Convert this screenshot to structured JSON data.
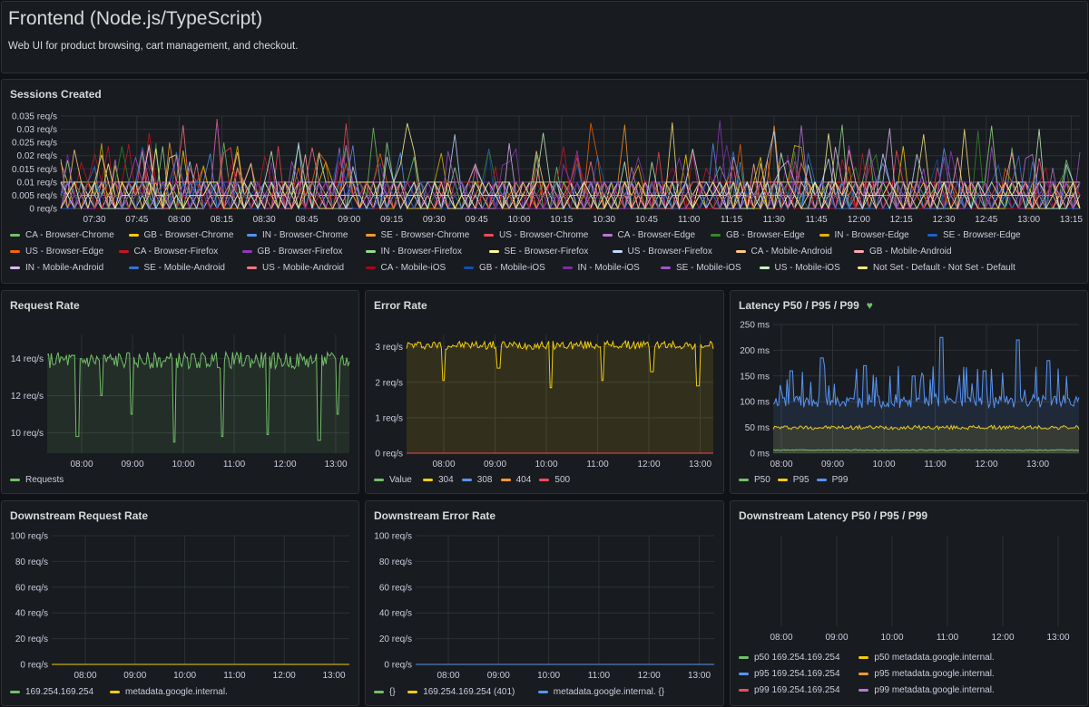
{
  "header": {
    "title": "Frontend (Node.js/TypeScript)",
    "description": "Web UI for product browsing, cart management, and checkout."
  },
  "colors": {
    "green": "#73bf69",
    "yellow": "#f2cc0c",
    "blue": "#5794f2",
    "orange": "#ff9830",
    "red": "#f2495c",
    "purple": "#b877d9",
    "grid": "#2c3235",
    "bg": "#181b1f"
  },
  "sessions": {
    "title": "Sessions Created",
    "chart_data": {
      "type": "line",
      "y_ticks": [
        "0.035 req/s",
        "0.03 req/s",
        "0.025 req/s",
        "0.02 req/s",
        "0.015 req/s",
        "0.01 req/s",
        "0.005 req/s",
        "0 req/s"
      ],
      "ylim": [
        0,
        0.035
      ],
      "x_ticks": [
        "07:30",
        "07:45",
        "08:00",
        "08:15",
        "08:30",
        "08:45",
        "09:00",
        "09:15",
        "09:30",
        "09:45",
        "10:00",
        "10:15",
        "10:30",
        "10:45",
        "11:00",
        "11:15",
        "11:30",
        "11:45",
        "12:00",
        "12:15",
        "12:30",
        "12:45",
        "13:00",
        "13:15"
      ],
      "series_note": "dense spikes, values mostly between 0 and 0.02 req/s, occasional peaks to 0.033",
      "legend": [
        {
          "label": "CA - Browser-Chrome",
          "color": "#73bf69"
        },
        {
          "label": "GB - Browser-Chrome",
          "color": "#f2cc0c"
        },
        {
          "label": "IN - Browser-Chrome",
          "color": "#5794f2"
        },
        {
          "label": "SE - Browser-Chrome",
          "color": "#ff9830"
        },
        {
          "label": "US - Browser-Chrome",
          "color": "#f2495c"
        },
        {
          "label": "CA - Browser-Edge",
          "color": "#b877d9"
        },
        {
          "label": "GB - Browser-Edge",
          "color": "#37872d"
        },
        {
          "label": "IN - Browser-Edge",
          "color": "#e0b400"
        },
        {
          "label": "SE - Browser-Edge",
          "color": "#1f60c4"
        },
        {
          "label": "US - Browser-Edge",
          "color": "#fa6400"
        },
        {
          "label": "CA - Browser-Firefox",
          "color": "#c4162a"
        },
        {
          "label": "GB - Browser-Firefox",
          "color": "#8f3bb8"
        },
        {
          "label": "IN - Browser-Firefox",
          "color": "#96d98d"
        },
        {
          "label": "SE - Browser-Firefox",
          "color": "#fff899"
        },
        {
          "label": "US - Browser-Firefox",
          "color": "#c0d8ff"
        },
        {
          "label": "CA - Mobile-Android",
          "color": "#ffcb7d"
        },
        {
          "label": "GB - Mobile-Android",
          "color": "#ffa6b0"
        },
        {
          "label": "IN - Mobile-Android",
          "color": "#deb6f2"
        },
        {
          "label": "SE - Mobile-Android",
          "color": "#3274d9"
        },
        {
          "label": "US - Mobile-Android",
          "color": "#ff7383"
        },
        {
          "label": "CA - Mobile-iOS",
          "color": "#ad0317"
        },
        {
          "label": "GB - Mobile-iOS",
          "color": "#1250b0"
        },
        {
          "label": "IN - Mobile-iOS",
          "color": "#7c2ea3"
        },
        {
          "label": "SE - Mobile-iOS",
          "color": "#a352cc"
        },
        {
          "label": "US - Mobile-iOS",
          "color": "#c8f2c2"
        },
        {
          "label": "Not Set - Default - Not Set - Default",
          "color": "#ffe680"
        }
      ]
    }
  },
  "request_rate": {
    "title": "Request Rate",
    "chart_data": {
      "type": "area",
      "y_ticks": [
        "14 req/s",
        "12 req/s",
        "10 req/s"
      ],
      "y_tick_values": [
        14,
        12,
        10
      ],
      "ylim": [
        8.9,
        15.3
      ],
      "x_ticks": [
        "08:00",
        "09:00",
        "10:00",
        "11:00",
        "12:00",
        "13:00"
      ],
      "series": [
        {
          "name": "Requests",
          "color": "#73bf69",
          "baseline": 13.9,
          "noise": 0.45,
          "dips": [
            [
              0.1,
              9.8
            ],
            [
              0.18,
              12.0
            ],
            [
              0.28,
              11.0
            ],
            [
              0.42,
              9.5
            ],
            [
              0.58,
              9.8
            ],
            [
              0.73,
              9.9
            ],
            [
              0.9,
              9.6
            ],
            [
              0.96,
              11.0
            ]
          ]
        }
      ]
    }
  },
  "error_rate": {
    "title": "Error Rate",
    "chart_data": {
      "type": "area",
      "y_ticks": [
        "3 req/s",
        "2 req/s",
        "1 req/s",
        "0 req/s"
      ],
      "y_tick_values": [
        3,
        2,
        1,
        0
      ],
      "ylim": [
        0,
        3.35
      ],
      "x_ticks": [
        "08:00",
        "09:00",
        "10:00",
        "11:00",
        "12:00",
        "13:00"
      ],
      "series": [
        {
          "name": "Value",
          "color": "#73bf69",
          "flat": 0
        },
        {
          "name": "304",
          "color": "#f2cc0c",
          "baseline": 3.05,
          "noise": 0.12,
          "dips": [
            [
              0.12,
              2.05
            ],
            [
              0.3,
              2.4
            ],
            [
              0.47,
              1.85
            ],
            [
              0.64,
              2.05
            ],
            [
              0.8,
              2.3
            ],
            [
              0.95,
              1.9
            ]
          ]
        },
        {
          "name": "308",
          "color": "#5794f2",
          "flat": 0
        },
        {
          "name": "404",
          "color": "#ff9830",
          "flat": 0
        },
        {
          "name": "500",
          "color": "#f2495c",
          "flat": 0
        }
      ]
    }
  },
  "latency": {
    "title": "Latency P50 / P95 / P99",
    "chart_data": {
      "type": "area",
      "y_ticks": [
        "250 ms",
        "200 ms",
        "150 ms",
        "100 ms",
        "50 ms",
        "0 ms"
      ],
      "y_tick_values": [
        250,
        200,
        150,
        100,
        50,
        0
      ],
      "ylim": [
        0,
        250
      ],
      "x_ticks": [
        "08:00",
        "09:00",
        "10:00",
        "11:00",
        "12:00",
        "13:00"
      ],
      "series": [
        {
          "name": "P50",
          "color": "#73bf69",
          "baseline": 6,
          "noise": 1
        },
        {
          "name": "P95",
          "color": "#f2cc0c",
          "baseline": 50,
          "noise": 4
        },
        {
          "name": "P99",
          "color": "#5794f2",
          "baseline": 100,
          "noise": 12,
          "spikes": [
            [
              0.06,
              160
            ],
            [
              0.16,
              185
            ],
            [
              0.3,
              170
            ],
            [
              0.46,
              150
            ],
            [
              0.55,
              225
            ],
            [
              0.69,
              160
            ],
            [
              0.8,
              220
            ],
            [
              0.9,
              180
            ]
          ]
        }
      ]
    }
  },
  "downstream_request": {
    "title": "Downstream Request Rate",
    "chart_data": {
      "type": "line",
      "y_ticks": [
        "100 req/s",
        "80 req/s",
        "60 req/s",
        "40 req/s",
        "20 req/s",
        "0 req/s"
      ],
      "y_tick_values": [
        100,
        80,
        60,
        40,
        20,
        0
      ],
      "ylim": [
        0,
        100
      ],
      "x_ticks": [
        "08:00",
        "09:00",
        "10:00",
        "11:00",
        "12:00",
        "13:00"
      ],
      "series": [
        {
          "name": "169.254.169.254",
          "color": "#73bf69",
          "flat": 0
        },
        {
          "name": "metadata.google.internal.",
          "color": "#f2cc0c",
          "flat": 0
        }
      ]
    }
  },
  "downstream_error": {
    "title": "Downstream Error Rate",
    "chart_data": {
      "type": "line",
      "y_ticks": [
        "100 req/s",
        "80 req/s",
        "60 req/s",
        "40 req/s",
        "20 req/s",
        "0 req/s"
      ],
      "y_tick_values": [
        100,
        80,
        60,
        40,
        20,
        0
      ],
      "ylim": [
        0,
        100
      ],
      "x_ticks": [
        "08:00",
        "09:00",
        "10:00",
        "11:00",
        "12:00",
        "13:00"
      ],
      "series": [
        {
          "name": "{}",
          "color": "#73bf69",
          "flat": 0
        },
        {
          "name": "169.254.169.254 (401)",
          "color": "#f2cc0c",
          "flat": 0
        },
        {
          "name": "metadata.google.internal. {}",
          "color": "#5794f2",
          "flat": 0
        }
      ]
    }
  },
  "downstream_latency": {
    "title": "Downstream Latency P50 / P95 / P99",
    "chart_data": {
      "type": "line",
      "x_ticks": [
        "08:00",
        "09:00",
        "10:00",
        "11:00",
        "12:00",
        "13:00"
      ],
      "legend": [
        {
          "label": "p50 169.254.169.254",
          "color": "#73bf69"
        },
        {
          "label": "p50 metadata.google.internal.",
          "color": "#f2cc0c"
        },
        {
          "label": "p95 169.254.169.254",
          "color": "#5794f2"
        },
        {
          "label": "p95 metadata.google.internal.",
          "color": "#ff9830"
        },
        {
          "label": "p99 169.254.169.254",
          "color": "#f2495c"
        },
        {
          "label": "p99 metadata.google.internal.",
          "color": "#b877d9"
        }
      ]
    }
  }
}
